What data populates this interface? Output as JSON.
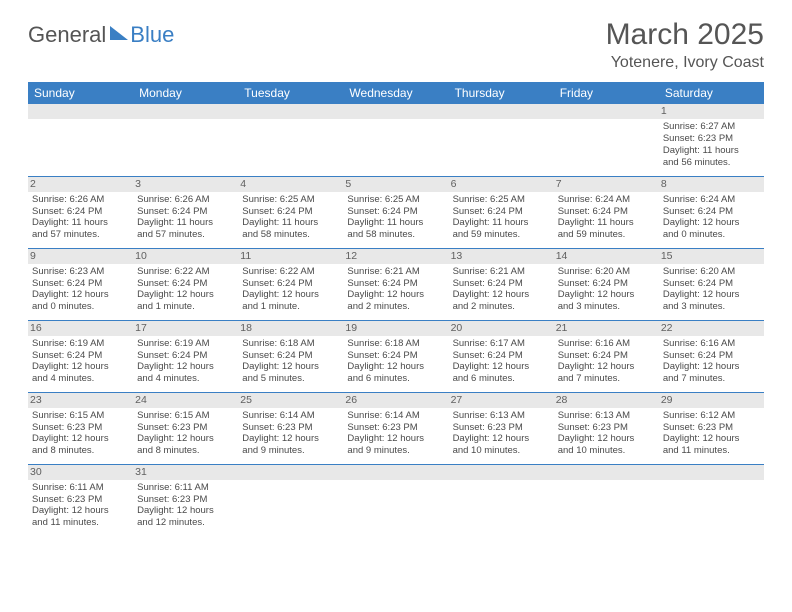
{
  "logo": {
    "general": "General",
    "blue": "Blue"
  },
  "title": "March 2025",
  "location": "Yotenere, Ivory Coast",
  "colors": {
    "header_bg": "#3a7fc4",
    "header_text": "#ffffff",
    "daynum_bg": "#e8e8e8",
    "row_divider": "#3a7fc4",
    "body_text": "#4a4a4a",
    "title_text": "#555555"
  },
  "weekdays": [
    "Sunday",
    "Monday",
    "Tuesday",
    "Wednesday",
    "Thursday",
    "Friday",
    "Saturday"
  ],
  "weeks": [
    [
      null,
      null,
      null,
      null,
      null,
      null,
      {
        "n": "1",
        "sunrise": "Sunrise: 6:27 AM",
        "sunset": "Sunset: 6:23 PM",
        "day1": "Daylight: 11 hours",
        "day2": "and 56 minutes."
      }
    ],
    [
      {
        "n": "2",
        "sunrise": "Sunrise: 6:26 AM",
        "sunset": "Sunset: 6:24 PM",
        "day1": "Daylight: 11 hours",
        "day2": "and 57 minutes."
      },
      {
        "n": "3",
        "sunrise": "Sunrise: 6:26 AM",
        "sunset": "Sunset: 6:24 PM",
        "day1": "Daylight: 11 hours",
        "day2": "and 57 minutes."
      },
      {
        "n": "4",
        "sunrise": "Sunrise: 6:25 AM",
        "sunset": "Sunset: 6:24 PM",
        "day1": "Daylight: 11 hours",
        "day2": "and 58 minutes."
      },
      {
        "n": "5",
        "sunrise": "Sunrise: 6:25 AM",
        "sunset": "Sunset: 6:24 PM",
        "day1": "Daylight: 11 hours",
        "day2": "and 58 minutes."
      },
      {
        "n": "6",
        "sunrise": "Sunrise: 6:25 AM",
        "sunset": "Sunset: 6:24 PM",
        "day1": "Daylight: 11 hours",
        "day2": "and 59 minutes."
      },
      {
        "n": "7",
        "sunrise": "Sunrise: 6:24 AM",
        "sunset": "Sunset: 6:24 PM",
        "day1": "Daylight: 11 hours",
        "day2": "and 59 minutes."
      },
      {
        "n": "8",
        "sunrise": "Sunrise: 6:24 AM",
        "sunset": "Sunset: 6:24 PM",
        "day1": "Daylight: 12 hours",
        "day2": "and 0 minutes."
      }
    ],
    [
      {
        "n": "9",
        "sunrise": "Sunrise: 6:23 AM",
        "sunset": "Sunset: 6:24 PM",
        "day1": "Daylight: 12 hours",
        "day2": "and 0 minutes."
      },
      {
        "n": "10",
        "sunrise": "Sunrise: 6:22 AM",
        "sunset": "Sunset: 6:24 PM",
        "day1": "Daylight: 12 hours",
        "day2": "and 1 minute."
      },
      {
        "n": "11",
        "sunrise": "Sunrise: 6:22 AM",
        "sunset": "Sunset: 6:24 PM",
        "day1": "Daylight: 12 hours",
        "day2": "and 1 minute."
      },
      {
        "n": "12",
        "sunrise": "Sunrise: 6:21 AM",
        "sunset": "Sunset: 6:24 PM",
        "day1": "Daylight: 12 hours",
        "day2": "and 2 minutes."
      },
      {
        "n": "13",
        "sunrise": "Sunrise: 6:21 AM",
        "sunset": "Sunset: 6:24 PM",
        "day1": "Daylight: 12 hours",
        "day2": "and 2 minutes."
      },
      {
        "n": "14",
        "sunrise": "Sunrise: 6:20 AM",
        "sunset": "Sunset: 6:24 PM",
        "day1": "Daylight: 12 hours",
        "day2": "and 3 minutes."
      },
      {
        "n": "15",
        "sunrise": "Sunrise: 6:20 AM",
        "sunset": "Sunset: 6:24 PM",
        "day1": "Daylight: 12 hours",
        "day2": "and 3 minutes."
      }
    ],
    [
      {
        "n": "16",
        "sunrise": "Sunrise: 6:19 AM",
        "sunset": "Sunset: 6:24 PM",
        "day1": "Daylight: 12 hours",
        "day2": "and 4 minutes."
      },
      {
        "n": "17",
        "sunrise": "Sunrise: 6:19 AM",
        "sunset": "Sunset: 6:24 PM",
        "day1": "Daylight: 12 hours",
        "day2": "and 4 minutes."
      },
      {
        "n": "18",
        "sunrise": "Sunrise: 6:18 AM",
        "sunset": "Sunset: 6:24 PM",
        "day1": "Daylight: 12 hours",
        "day2": "and 5 minutes."
      },
      {
        "n": "19",
        "sunrise": "Sunrise: 6:18 AM",
        "sunset": "Sunset: 6:24 PM",
        "day1": "Daylight: 12 hours",
        "day2": "and 6 minutes."
      },
      {
        "n": "20",
        "sunrise": "Sunrise: 6:17 AM",
        "sunset": "Sunset: 6:24 PM",
        "day1": "Daylight: 12 hours",
        "day2": "and 6 minutes."
      },
      {
        "n": "21",
        "sunrise": "Sunrise: 6:16 AM",
        "sunset": "Sunset: 6:24 PM",
        "day1": "Daylight: 12 hours",
        "day2": "and 7 minutes."
      },
      {
        "n": "22",
        "sunrise": "Sunrise: 6:16 AM",
        "sunset": "Sunset: 6:24 PM",
        "day1": "Daylight: 12 hours",
        "day2": "and 7 minutes."
      }
    ],
    [
      {
        "n": "23",
        "sunrise": "Sunrise: 6:15 AM",
        "sunset": "Sunset: 6:23 PM",
        "day1": "Daylight: 12 hours",
        "day2": "and 8 minutes."
      },
      {
        "n": "24",
        "sunrise": "Sunrise: 6:15 AM",
        "sunset": "Sunset: 6:23 PM",
        "day1": "Daylight: 12 hours",
        "day2": "and 8 minutes."
      },
      {
        "n": "25",
        "sunrise": "Sunrise: 6:14 AM",
        "sunset": "Sunset: 6:23 PM",
        "day1": "Daylight: 12 hours",
        "day2": "and 9 minutes."
      },
      {
        "n": "26",
        "sunrise": "Sunrise: 6:14 AM",
        "sunset": "Sunset: 6:23 PM",
        "day1": "Daylight: 12 hours",
        "day2": "and 9 minutes."
      },
      {
        "n": "27",
        "sunrise": "Sunrise: 6:13 AM",
        "sunset": "Sunset: 6:23 PM",
        "day1": "Daylight: 12 hours",
        "day2": "and 10 minutes."
      },
      {
        "n": "28",
        "sunrise": "Sunrise: 6:13 AM",
        "sunset": "Sunset: 6:23 PM",
        "day1": "Daylight: 12 hours",
        "day2": "and 10 minutes."
      },
      {
        "n": "29",
        "sunrise": "Sunrise: 6:12 AM",
        "sunset": "Sunset: 6:23 PM",
        "day1": "Daylight: 12 hours",
        "day2": "and 11 minutes."
      }
    ],
    [
      {
        "n": "30",
        "sunrise": "Sunrise: 6:11 AM",
        "sunset": "Sunset: 6:23 PM",
        "day1": "Daylight: 12 hours",
        "day2": "and 11 minutes."
      },
      {
        "n": "31",
        "sunrise": "Sunrise: 6:11 AM",
        "sunset": "Sunset: 6:23 PM",
        "day1": "Daylight: 12 hours",
        "day2": "and 12 minutes."
      },
      null,
      null,
      null,
      null,
      null
    ]
  ]
}
